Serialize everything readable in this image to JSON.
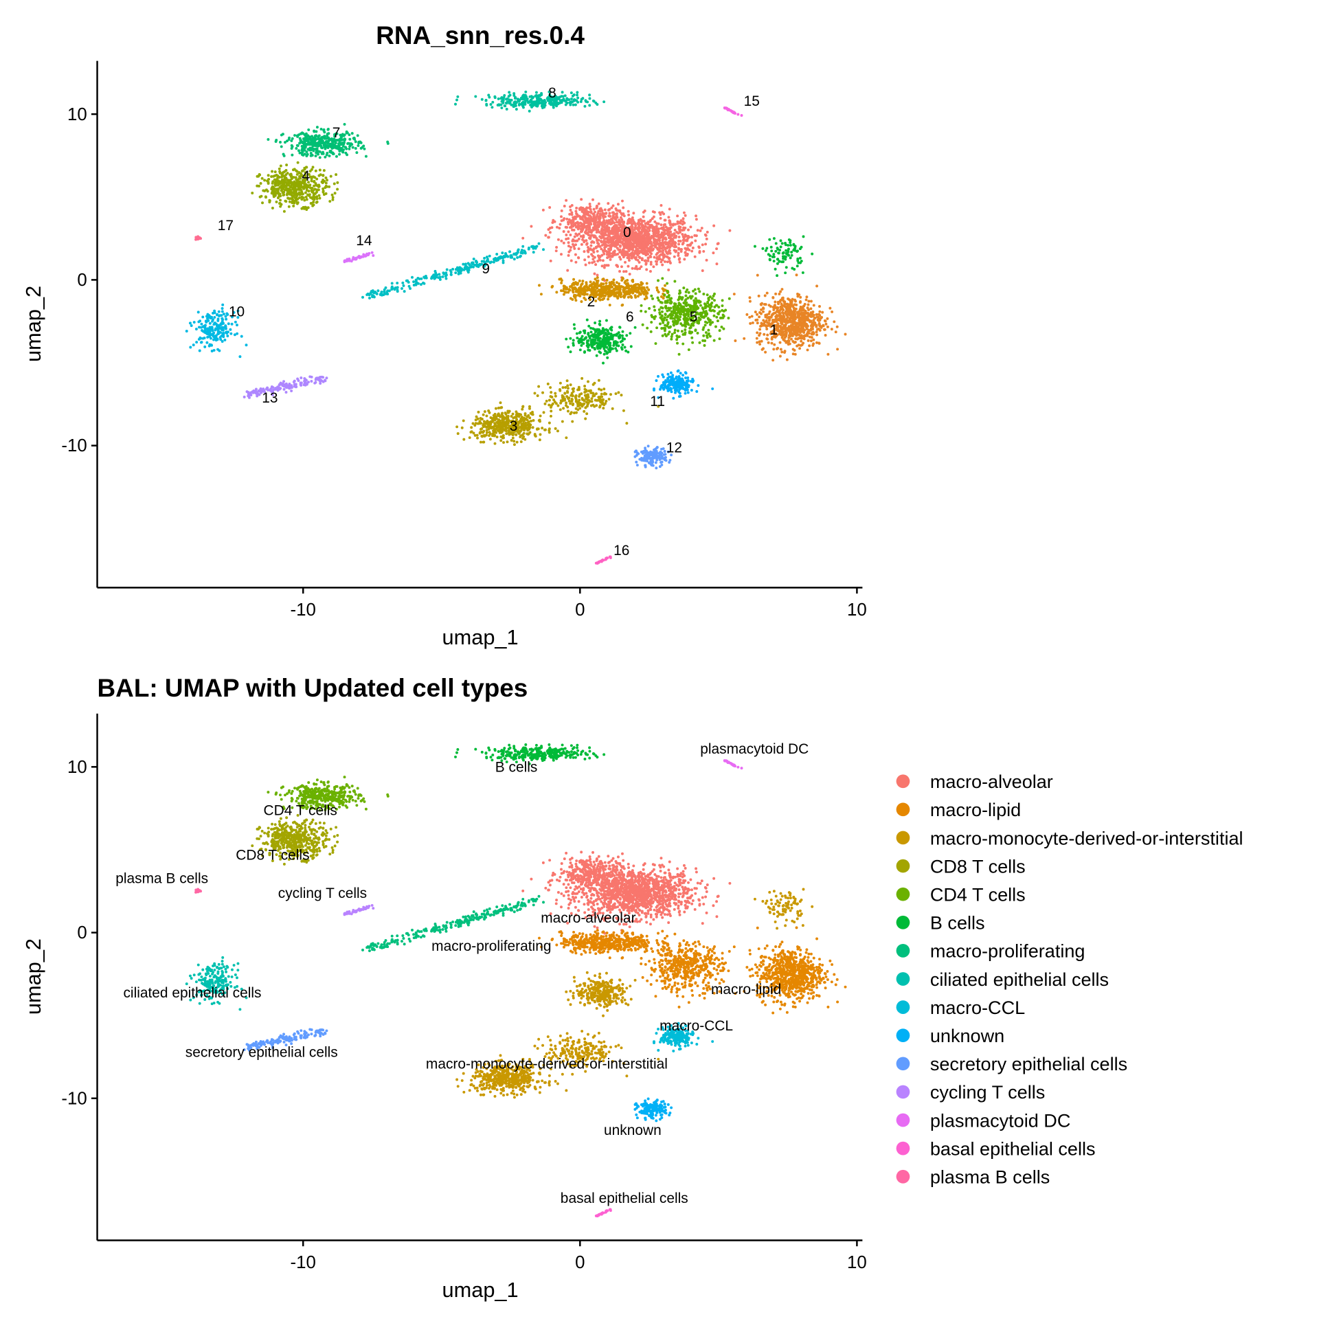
{
  "chart_data": [
    {
      "type": "scatter",
      "title": "RNA_snn_res.0.4",
      "xlabel": "umap_1",
      "ylabel": "umap_2",
      "xlim": [
        -17.4,
        10.2
      ],
      "ylim": [
        -18.6,
        13.2
      ],
      "xticks": [
        -10,
        0,
        10
      ],
      "yticks": [
        -10,
        0,
        10
      ],
      "grid": false,
      "legend": "none",
      "color_by": "cluster",
      "colors": [
        "#F8766D",
        "#E88526",
        "#D39200",
        "#B79F00",
        "#93AA00",
        "#5EB300",
        "#00BA38",
        "#00BF74",
        "#00C19F",
        "#00BFC4",
        "#00B9E3",
        "#00ADFA",
        "#619CFF",
        "#AE87FF",
        "#DB72FB",
        "#F564E3",
        "#FF61C3",
        "#FF6C91"
      ],
      "labels": [
        {
          "text": "0",
          "x": 1.7,
          "y": 2.9
        },
        {
          "text": "1",
          "x": 7.0,
          "y": -3.0
        },
        {
          "text": "2",
          "x": 0.4,
          "y": -1.3
        },
        {
          "text": "3",
          "x": -2.4,
          "y": -8.8
        },
        {
          "text": "4",
          "x": -9.9,
          "y": 6.3
        },
        {
          "text": "5",
          "x": 4.1,
          "y": -2.2
        },
        {
          "text": "6",
          "x": 1.8,
          "y": -2.2
        },
        {
          "text": "7",
          "x": -8.8,
          "y": 8.9
        },
        {
          "text": "8",
          "x": -1.0,
          "y": 11.3
        },
        {
          "text": "9",
          "x": -3.4,
          "y": 0.7
        },
        {
          "text": "10",
          "x": -12.4,
          "y": -1.9
        },
        {
          "text": "11",
          "x": 2.8,
          "y": -7.3
        },
        {
          "text": "12",
          "x": 3.4,
          "y": -10.1
        },
        {
          "text": "13",
          "x": -11.2,
          "y": -7.1
        },
        {
          "text": "14",
          "x": -7.8,
          "y": 2.4
        },
        {
          "text": "15",
          "x": 6.2,
          "y": 10.8
        },
        {
          "text": "16",
          "x": 1.5,
          "y": -16.3
        },
        {
          "text": "17",
          "x": -12.8,
          "y": 3.3
        }
      ]
    },
    {
      "type": "scatter",
      "title": "BAL: UMAP with Updated cell types",
      "xlabel": "umap_1",
      "ylabel": "umap_2",
      "xlim": [
        -17.4,
        10.2
      ],
      "ylim": [
        -18.6,
        13.2
      ],
      "xticks": [
        -10,
        0,
        10
      ],
      "yticks": [
        -10,
        0,
        10
      ],
      "grid": false,
      "legend": "right",
      "color_by": "cell_type",
      "legend_entries": [
        {
          "name": "macro-alveolar",
          "color": "#F8766D"
        },
        {
          "name": "macro-lipid",
          "color": "#E58700"
        },
        {
          "name": "macro-monocyte-derived-or-interstitial",
          "color": "#C99800"
        },
        {
          "name": "CD8 T cells",
          "color": "#A3A500"
        },
        {
          "name": "CD4 T cells",
          "color": "#6BB100"
        },
        {
          "name": "B cells",
          "color": "#00BA38"
        },
        {
          "name": "macro-proliferating",
          "color": "#00BF7D"
        },
        {
          "name": "ciliated epithelial cells",
          "color": "#00C0AF"
        },
        {
          "name": "macro-CCL",
          "color": "#00BCD8"
        },
        {
          "name": "unknown",
          "color": "#00B0F6"
        },
        {
          "name": "secretory epithelial cells",
          "color": "#619CFF"
        },
        {
          "name": "cycling T cells",
          "color": "#B983FF"
        },
        {
          "name": "plasmacytoid DC",
          "color": "#E76BF3"
        },
        {
          "name": "basal epithelial cells",
          "color": "#FD61D1"
        },
        {
          "name": "plasma B cells",
          "color": "#FF67A4"
        }
      ],
      "cluster_to_cell_type": [
        0,
        1,
        1,
        2,
        3,
        1,
        2,
        4,
        5,
        6,
        7,
        8,
        9,
        10,
        11,
        12,
        13,
        14
      ],
      "labels": [
        {
          "text": "B cells",
          "x": -2.3,
          "y": 10.0
        },
        {
          "text": "plasmacytoid DC",
          "x": 6.3,
          "y": 11.1
        },
        {
          "text": "CD4 T cells",
          "x": -10.1,
          "y": 7.4
        },
        {
          "text": "CD8 T cells",
          "x": -11.1,
          "y": 4.7
        },
        {
          "text": "plasma B cells",
          "x": -15.1,
          "y": 3.3
        },
        {
          "text": "cycling T cells",
          "x": -9.3,
          "y": 2.4
        },
        {
          "text": "macro-alveolar",
          "x": 0.3,
          "y": 0.9
        },
        {
          "text": "macro-proliferating",
          "x": -3.2,
          "y": -0.8
        },
        {
          "text": "ciliated epithelial cells",
          "x": -14.0,
          "y": -3.6
        },
        {
          "text": "macro-lipid",
          "x": 6.0,
          "y": -3.4
        },
        {
          "text": "macro-CCL",
          "x": 4.2,
          "y": -5.6
        },
        {
          "text": "secretory epithelial cells",
          "x": -11.5,
          "y": -7.2
        },
        {
          "text": "macro-monocyte-derived-or-interstitial",
          "x": -1.2,
          "y": -7.9
        },
        {
          "text": "unknown",
          "x": 1.9,
          "y": -11.9
        },
        {
          "text": "basal epithelial cells",
          "x": 1.6,
          "y": -16.0
        }
      ]
    }
  ],
  "clusters": [
    {
      "id": 0,
      "blobs": [
        {
          "cx": 2.0,
          "cy": 2.4,
          "sx": 1.8,
          "sy": 1.2,
          "n": 1300
        },
        {
          "cx": 0.3,
          "cy": 3.6,
          "sx": 0.9,
          "sy": 0.8,
          "n": 300
        }
      ]
    },
    {
      "id": 1,
      "blobs": [
        {
          "cx": 7.6,
          "cy": -2.5,
          "sx": 1.0,
          "sy": 1.3,
          "n": 700
        }
      ]
    },
    {
      "id": 2,
      "blobs": [
        {
          "cx": 1.0,
          "cy": -0.6,
          "sx": 1.4,
          "sy": 0.5,
          "n": 450
        }
      ]
    },
    {
      "id": 3,
      "blobs": [
        {
          "cx": -2.6,
          "cy": -8.8,
          "sx": 1.1,
          "sy": 0.7,
          "n": 450
        },
        {
          "cx": 0.0,
          "cy": -7.2,
          "sx": 1.1,
          "sy": 0.8,
          "n": 200
        }
      ]
    },
    {
      "id": 4,
      "blobs": [
        {
          "cx": -10.3,
          "cy": 5.6,
          "sx": 1.0,
          "sy": 0.9,
          "n": 450
        }
      ]
    },
    {
      "id": 5,
      "blobs": [
        {
          "cx": 3.8,
          "cy": -2.1,
          "sx": 1.1,
          "sy": 1.2,
          "n": 450
        }
      ]
    },
    {
      "id": 6,
      "blobs": [
        {
          "cx": 0.8,
          "cy": -3.6,
          "sx": 0.8,
          "sy": 0.7,
          "n": 280
        },
        {
          "cx": 7.4,
          "cy": 1.6,
          "sx": 0.6,
          "sy": 0.8,
          "n": 90
        }
      ]
    },
    {
      "id": 7,
      "blobs": [
        {
          "cx": -9.3,
          "cy": 8.2,
          "sx": 1.1,
          "sy": 0.6,
          "n": 380
        }
      ]
    },
    {
      "id": 8,
      "blobs": [
        {
          "cx": -1.5,
          "cy": 10.8,
          "sx": 1.6,
          "sy": 0.35,
          "n": 300
        }
      ]
    },
    {
      "id": 9,
      "lines": [
        {
          "x0": -7.7,
          "y0": -1.0,
          "x1": -1.5,
          "y1": 2.0,
          "w": 0.25,
          "n": 250
        }
      ]
    },
    {
      "id": 10,
      "blobs": [
        {
          "cx": -13.2,
          "cy": -3.0,
          "sx": 0.6,
          "sy": 0.9,
          "n": 200
        }
      ]
    },
    {
      "id": 11,
      "blobs": [
        {
          "cx": 3.5,
          "cy": -6.3,
          "sx": 0.5,
          "sy": 0.5,
          "n": 200
        }
      ]
    },
    {
      "id": 12,
      "blobs": [
        {
          "cx": 2.6,
          "cy": -10.7,
          "sx": 0.45,
          "sy": 0.45,
          "n": 150
        }
      ]
    },
    {
      "id": 13,
      "lines": [
        {
          "x0": -12.0,
          "y0": -6.9,
          "x1": -9.2,
          "y1": -5.9,
          "w": 0.3,
          "n": 150
        }
      ]
    },
    {
      "id": 14,
      "lines": [
        {
          "x0": -8.5,
          "y0": 1.1,
          "x1": -7.5,
          "y1": 1.6,
          "w": 0.1,
          "n": 40
        }
      ]
    },
    {
      "id": 15,
      "lines": [
        {
          "x0": 5.2,
          "y0": 10.4,
          "x1": 5.8,
          "y1": 9.9,
          "w": 0.05,
          "n": 25
        }
      ]
    },
    {
      "id": 16,
      "lines": [
        {
          "x0": 0.6,
          "y0": -17.1,
          "x1": 1.1,
          "y1": -16.7,
          "w": 0.05,
          "n": 25
        }
      ]
    },
    {
      "id": 17,
      "blobs": [
        {
          "cx": -13.8,
          "cy": 2.5,
          "sx": 0.08,
          "sy": 0.1,
          "n": 15
        }
      ]
    }
  ]
}
